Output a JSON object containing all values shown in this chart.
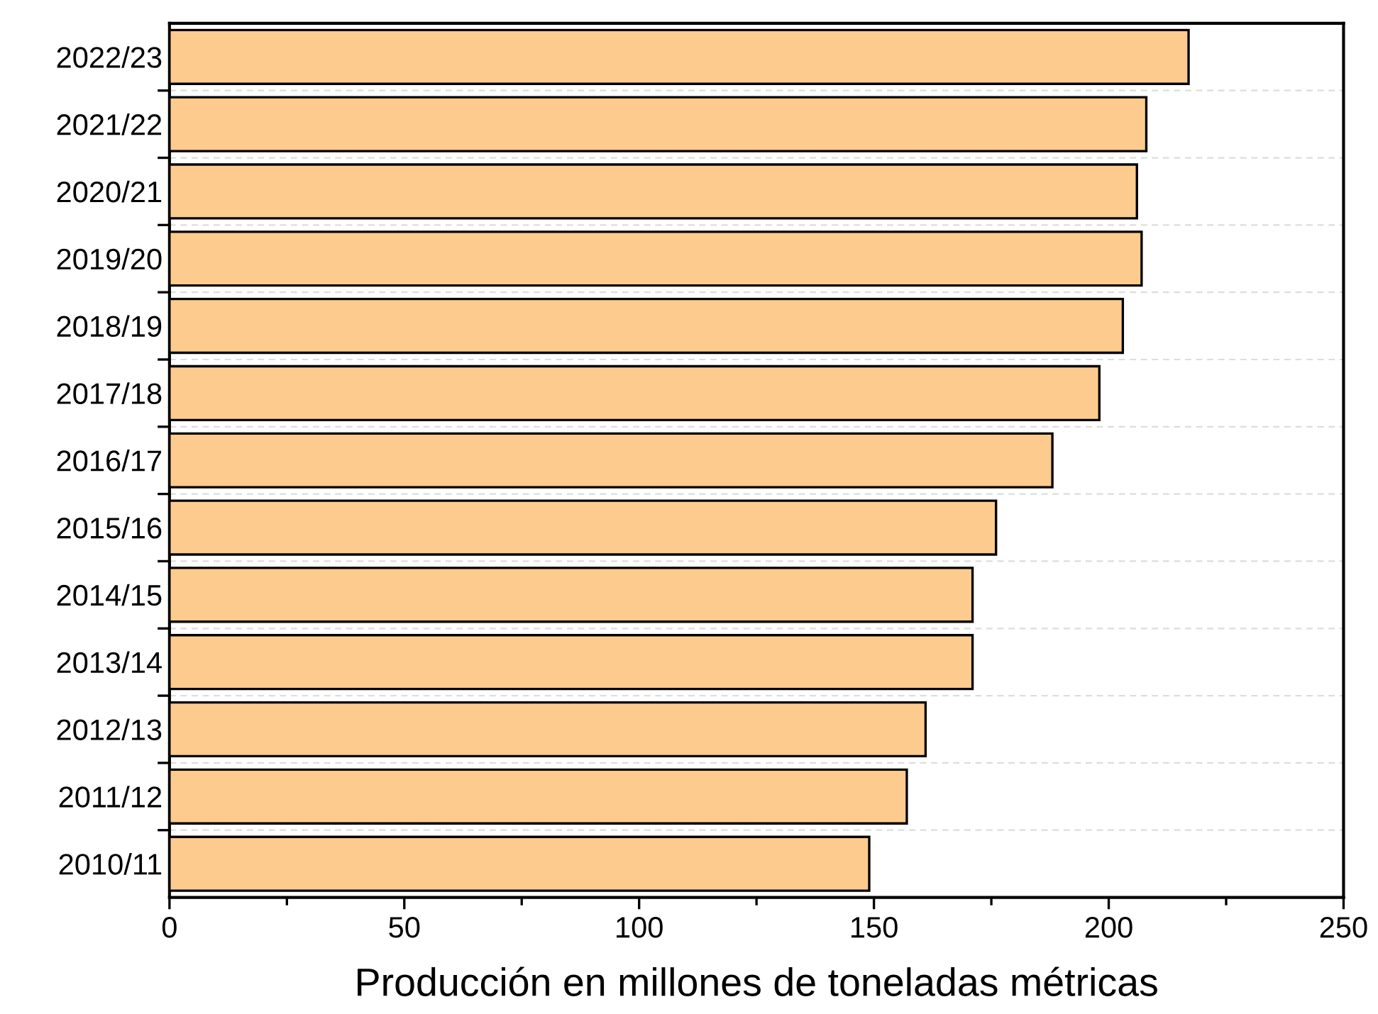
{
  "chart_data": {
    "type": "bar",
    "orientation": "horizontal",
    "xlabel": "Producción en millones de toneladas métricas",
    "categories": [
      "2022/23",
      "2021/22",
      "2020/21",
      "2019/20",
      "2018/19",
      "2017/18",
      "2016/17",
      "2015/16",
      "2014/15",
      "2013/14",
      "2012/13",
      "2011/12",
      "2010/11"
    ],
    "values": [
      217,
      208,
      206,
      207,
      203,
      198,
      188,
      176,
      171,
      171,
      161,
      157,
      149
    ],
    "color": "#fdcb8e",
    "xlim": [
      0,
      250
    ],
    "xticks": [
      0,
      50,
      100,
      150,
      200,
      250
    ],
    "grid": "y"
  }
}
